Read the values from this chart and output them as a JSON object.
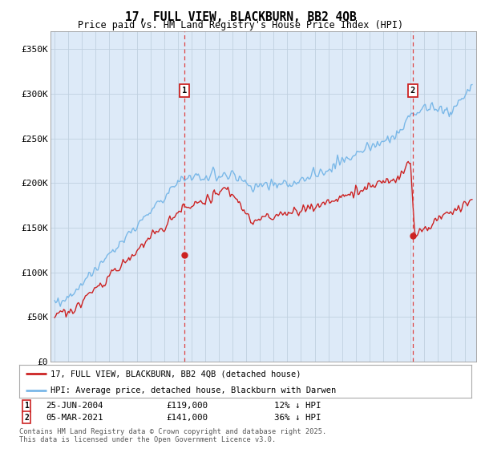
{
  "title": "17, FULL VIEW, BLACKBURN, BB2 4QB",
  "subtitle": "Price paid vs. HM Land Registry's House Price Index (HPI)",
  "ylim": [
    0,
    370000
  ],
  "yticks": [
    0,
    50000,
    100000,
    150000,
    200000,
    250000,
    300000,
    350000
  ],
  "ytick_labels": [
    "£0",
    "£50K",
    "£100K",
    "£150K",
    "£200K",
    "£250K",
    "£300K",
    "£350K"
  ],
  "legend_line1": "17, FULL VIEW, BLACKBURN, BB2 4QB (detached house)",
  "legend_line2": "HPI: Average price, detached house, Blackburn with Darwen",
  "sale1_date": "25-JUN-2004",
  "sale1_price": "£119,000",
  "sale1_hpi": "12% ↓ HPI",
  "sale2_date": "05-MAR-2021",
  "sale2_price": "£141,000",
  "sale2_hpi": "36% ↓ HPI",
  "footer": "Contains HM Land Registry data © Crown copyright and database right 2025.\nThis data is licensed under the Open Government Licence v3.0.",
  "hpi_color": "#7ab8e8",
  "price_color": "#cc2222",
  "vline_color": "#dd4444",
  "grid_color": "#c0d0e0",
  "bg_color": "#ddeaf8",
  "marker1_year": 2004.48,
  "marker2_year": 2021.17,
  "sale1_price_val": 119000,
  "sale2_price_val": 141000
}
